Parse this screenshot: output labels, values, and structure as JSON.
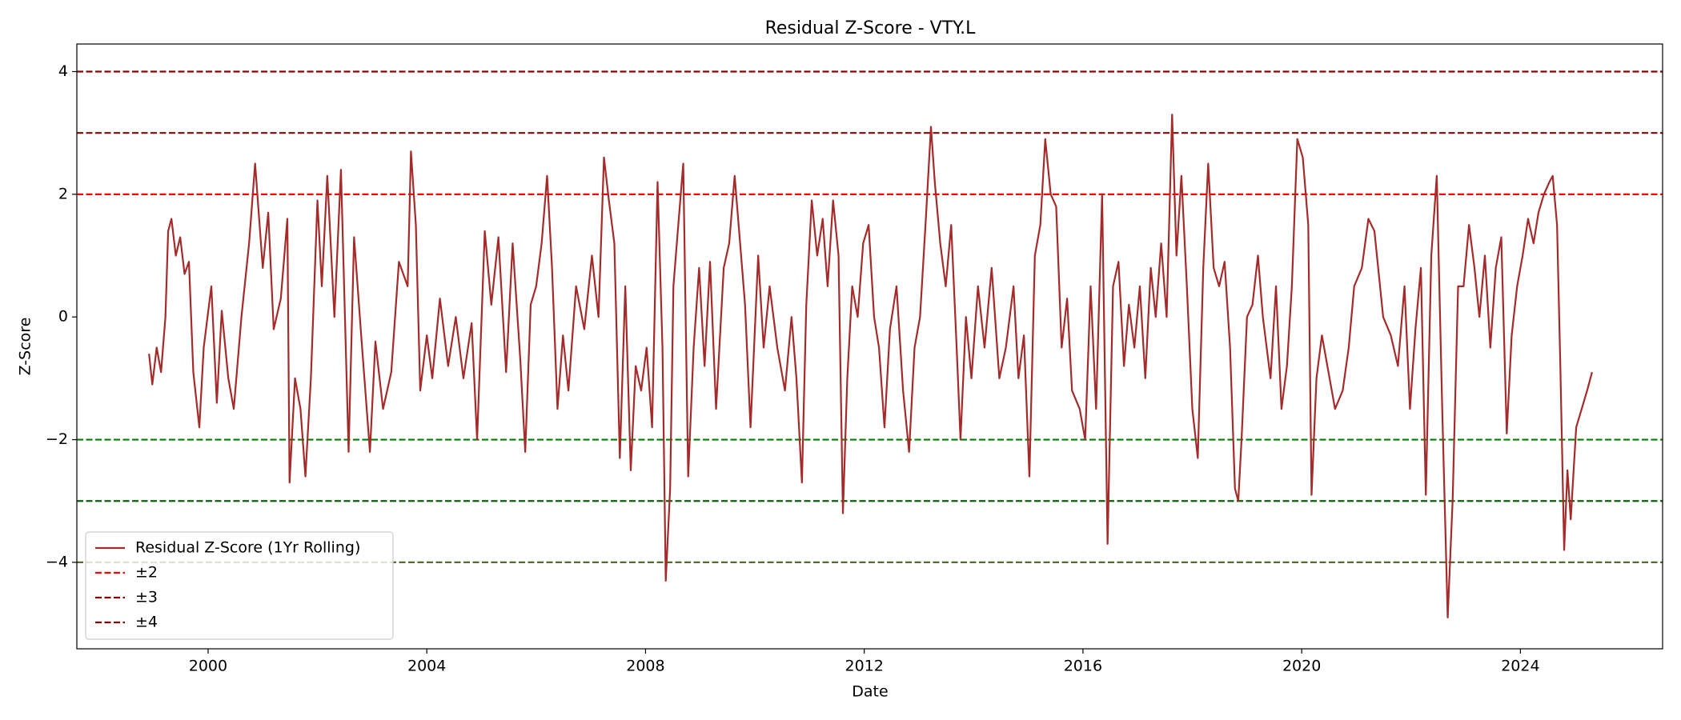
{
  "chart_data": {
    "type": "line",
    "title": "Residual Z-Score - VTY.L",
    "x_label": "Date",
    "y_label": "Z-Score",
    "xlim": [
      1997.6,
      2026.6
    ],
    "xticks": [
      2000,
      2004,
      2008,
      2012,
      2016,
      2020,
      2024
    ],
    "ylim": [
      -5.41,
      4.45
    ],
    "yticks": [
      {
        "value": -4,
        "label": "−4"
      },
      {
        "value": -2,
        "label": "−2"
      },
      0,
      2,
      4
    ],
    "legend": "lower left",
    "x": [
      1998.92,
      1998.98,
      1999.06,
      1999.14,
      1999.22,
      1999.27,
      1999.33,
      1999.41,
      1999.49,
      1999.57,
      1999.65,
      1999.73,
      1999.84,
      1999.92,
      2000.06,
      2000.16,
      2000.25,
      2000.37,
      2000.47,
      2000.61,
      2000.75,
      2000.86,
      2001.0,
      2001.1,
      2001.2,
      2001.33,
      2001.45,
      2001.49,
      2001.59,
      2001.69,
      2001.78,
      2001.88,
      2002.0,
      2002.08,
      2002.18,
      2002.31,
      2002.43,
      2002.57,
      2002.67,
      2002.8,
      2002.96,
      2003.06,
      2003.2,
      2003.35,
      2003.49,
      2003.65,
      2003.71,
      2003.8,
      2003.88,
      2004.0,
      2004.1,
      2004.24,
      2004.39,
      2004.53,
      2004.67,
      2004.82,
      2004.92,
      2005.06,
      2005.18,
      2005.31,
      2005.45,
      2005.57,
      2005.71,
      2005.8,
      2005.9,
      2006.0,
      2006.1,
      2006.2,
      2006.29,
      2006.39,
      2006.49,
      2006.59,
      2006.73,
      2006.88,
      2007.02,
      2007.14,
      2007.24,
      2007.33,
      2007.43,
      2007.53,
      2007.63,
      2007.73,
      2007.82,
      2007.92,
      2008.02,
      2008.12,
      2008.22,
      2008.31,
      2008.37,
      2008.45,
      2008.51,
      2008.59,
      2008.69,
      2008.78,
      2008.88,
      2008.98,
      2009.08,
      2009.18,
      2009.29,
      2009.43,
      2009.53,
      2009.63,
      2009.73,
      2009.82,
      2009.92,
      2010.06,
      2010.16,
      2010.27,
      2010.41,
      2010.55,
      2010.67,
      2010.76,
      2010.86,
      2010.94,
      2011.04,
      2011.14,
      2011.24,
      2011.33,
      2011.43,
      2011.53,
      2011.61,
      2011.69,
      2011.78,
      2011.88,
      2011.98,
      2012.08,
      2012.18,
      2012.27,
      2012.37,
      2012.47,
      2012.59,
      2012.71,
      2012.82,
      2012.92,
      2013.02,
      2013.12,
      2013.22,
      2013.29,
      2013.39,
      2013.49,
      2013.59,
      2013.69,
      2013.76,
      2013.86,
      2013.96,
      2014.08,
      2014.2,
      2014.33,
      2014.47,
      2014.59,
      2014.73,
      2014.82,
      2014.92,
      2015.02,
      2015.12,
      2015.22,
      2015.31,
      2015.41,
      2015.51,
      2015.61,
      2015.71,
      2015.8,
      2015.94,
      2016.04,
      2016.14,
      2016.24,
      2016.35,
      2016.45,
      2016.55,
      2016.65,
      2016.75,
      2016.84,
      2016.94,
      2017.04,
      2017.14,
      2017.24,
      2017.33,
      2017.43,
      2017.53,
      2017.63,
      2017.71,
      2017.8,
      2017.9,
      2018.0,
      2018.1,
      2018.2,
      2018.29,
      2018.39,
      2018.49,
      2018.59,
      2018.69,
      2018.78,
      2018.84,
      2018.9,
      2019.0,
      2019.1,
      2019.2,
      2019.29,
      2019.43,
      2019.53,
      2019.63,
      2019.73,
      2019.82,
      2019.92,
      2020.02,
      2020.12,
      2020.18,
      2020.27,
      2020.37,
      2020.47,
      2020.61,
      2020.75,
      2020.86,
      2020.96,
      2021.1,
      2021.22,
      2021.33,
      2021.49,
      2021.63,
      2021.76,
      2021.88,
      2021.98,
      2022.08,
      2022.18,
      2022.27,
      2022.37,
      2022.47,
      2022.57,
      2022.67,
      2022.76,
      2022.86,
      2022.96,
      2023.06,
      2023.16,
      2023.25,
      2023.35,
      2023.45,
      2023.55,
      2023.65,
      2023.75,
      2023.84,
      2023.94,
      2024.04,
      2024.14,
      2024.24,
      2024.33,
      2024.43,
      2024.53,
      2024.59,
      2024.67,
      2024.73,
      2024.8,
      2024.86,
      2024.92,
      2025.02,
      2025.12,
      2025.22,
      2025.31
    ],
    "series": [
      {
        "name": "Residual Z-Score (1Yr Rolling)",
        "color": "#a52a2a",
        "values": [
          -0.6,
          -1.1,
          -0.5,
          -0.9,
          0.0,
          1.4,
          1.6,
          1.0,
          1.3,
          0.7,
          0.9,
          -0.9,
          -1.8,
          -0.5,
          0.5,
          -1.4,
          0.1,
          -1.0,
          -1.5,
          0.0,
          1.2,
          2.5,
          0.8,
          1.7,
          -0.2,
          0.3,
          1.6,
          -2.7,
          -1.0,
          -1.5,
          -2.6,
          -1.0,
          1.9,
          0.5,
          2.3,
          0.0,
          2.4,
          -2.2,
          1.3,
          -0.3,
          -2.2,
          -0.4,
          -1.5,
          -0.9,
          0.9,
          0.5,
          2.7,
          1.5,
          -1.2,
          -0.3,
          -1.0,
          0.3,
          -0.8,
          0.0,
          -1.0,
          -0.1,
          -2.0,
          1.4,
          0.2,
          1.3,
          -0.9,
          1.2,
          -0.7,
          -2.2,
          0.2,
          0.5,
          1.2,
          2.3,
          0.8,
          -1.5,
          -0.3,
          -1.2,
          0.5,
          -0.2,
          1.0,
          0.0,
          2.6,
          1.9,
          1.2,
          -2.3,
          0.5,
          -2.5,
          -0.8,
          -1.2,
          -0.5,
          -1.8,
          2.2,
          -0.5,
          -4.3,
          -2.8,
          0.5,
          1.4,
          2.5,
          -2.6,
          -0.5,
          0.8,
          -0.8,
          0.9,
          -1.5,
          0.8,
          1.2,
          2.3,
          1.2,
          0.2,
          -1.8,
          1.0,
          -0.5,
          0.5,
          -0.5,
          -1.2,
          0.0,
          -1.0,
          -2.7,
          0.2,
          1.9,
          1.0,
          1.6,
          0.5,
          1.9,
          1.0,
          -3.2,
          -1.0,
          0.5,
          0.0,
          1.2,
          1.5,
          0.0,
          -0.5,
          -1.8,
          -0.2,
          0.5,
          -1.2,
          -2.2,
          -0.5,
          0.0,
          1.5,
          3.1,
          2.2,
          1.2,
          0.5,
          1.5,
          -0.5,
          -2.0,
          0.0,
          -1.0,
          0.5,
          -0.5,
          0.8,
          -1.0,
          -0.5,
          0.5,
          -1.0,
          -0.3,
          -2.6,
          1.0,
          1.5,
          2.9,
          2.0,
          1.8,
          -0.5,
          0.3,
          -1.2,
          -1.5,
          -2.0,
          0.5,
          -1.5,
          2.0,
          -3.7,
          0.5,
          0.9,
          -0.8,
          0.2,
          -0.5,
          0.5,
          -1.0,
          0.8,
          0.0,
          1.2,
          0.0,
          3.3,
          1.0,
          2.3,
          0.5,
          -1.5,
          -2.3,
          0.8,
          2.5,
          0.8,
          0.5,
          0.9,
          -0.5,
          -2.8,
          -3.0,
          -2.0,
          0.0,
          0.2,
          1.0,
          0.0,
          -1.0,
          0.5,
          -1.5,
          -0.8,
          0.5,
          2.9,
          2.6,
          1.5,
          -2.9,
          -1.0,
          -0.3,
          -0.8,
          -1.5,
          -1.2,
          -0.5,
          0.5,
          0.8,
          1.6,
          1.4,
          0.0,
          -0.3,
          -0.8,
          0.5,
          -1.5,
          -0.2,
          0.8,
          -2.9,
          1.0,
          2.3,
          -1.5,
          -4.9,
          -3.0,
          0.5,
          0.5,
          1.5,
          0.8,
          0.0,
          1.0,
          -0.5,
          0.8,
          1.3,
          -1.9,
          -0.3,
          0.5,
          1.0,
          1.6,
          1.2,
          1.7,
          2.0,
          2.2,
          2.3,
          1.5,
          -0.8,
          -3.8,
          -2.5,
          -3.3,
          -1.8,
          -1.5,
          -1.2,
          -0.9
        ]
      }
    ],
    "threshold_lines": [
      {
        "name": "±2",
        "color": "#ff0000",
        "lower_color": "#008000",
        "values": [
          2,
          -2
        ]
      },
      {
        "name": "±3",
        "color": "#8b0000",
        "lower_color": "#006400",
        "values": [
          3,
          -3
        ]
      },
      {
        "name": "±4",
        "color": "#8b0000",
        "lower_color": "#556b2f",
        "values": [
          4,
          -4
        ]
      }
    ]
  }
}
